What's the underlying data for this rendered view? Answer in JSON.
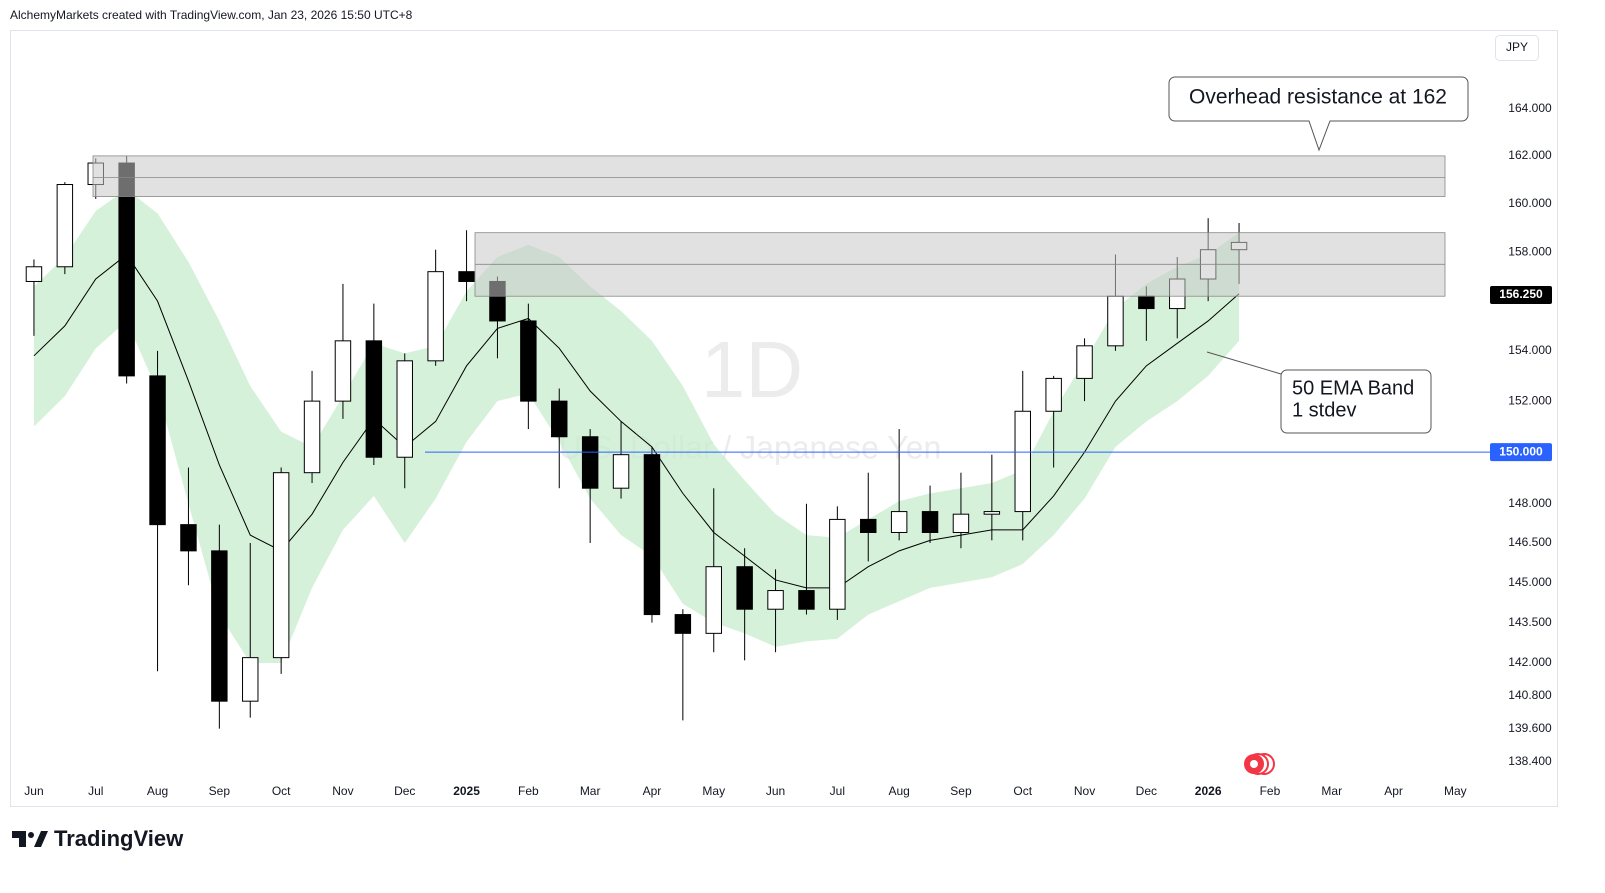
{
  "header": "AlchemyMarkets created with TradingView.com, Jan 23, 2026 15:50 UTC+8",
  "footer": "TradingView",
  "chart_data": {
    "type": "candlestick",
    "watermark": "1D",
    "subtitle": "U.S. Dollar / Japanese Yen",
    "currency": "JPY",
    "annotations": [
      "Overhead resistance at 162",
      "50 EMA Band",
      "1 stdev"
    ],
    "categories": [
      "Jun",
      null,
      "Jul",
      null,
      "Aug",
      null,
      "Sep",
      null,
      "Oct",
      null,
      "Nov",
      null,
      "Dec",
      null,
      "2025",
      null,
      "Feb",
      null,
      "Mar",
      null,
      "Apr",
      null,
      "May",
      null,
      "Jun",
      null,
      "Jul",
      null,
      "Aug",
      null,
      "Sep",
      null,
      "Oct",
      null,
      "Nov",
      null,
      "Dec",
      null,
      "2026",
      null,
      "Feb",
      null,
      "Mar",
      null,
      "Apr",
      null,
      "May"
    ],
    "open": [
      156.8,
      157.4,
      160.8,
      161.7,
      153.0,
      147.2,
      146.2,
      140.6,
      142.2,
      149.2,
      152.0,
      154.4,
      149.8,
      153.6,
      157.2,
      156.8,
      155.2,
      152.0,
      150.6,
      148.6,
      149.9,
      143.8,
      143.1,
      145.6,
      144.0,
      144.7,
      144.0,
      147.4,
      146.9,
      147.7,
      146.9,
      147.6,
      147.7,
      151.6,
      152.9,
      154.2,
      156.2,
      155.7,
      156.9,
      158.1,
      null,
      null,
      null,
      null,
      null,
      null,
      null
    ],
    "high": [
      157.7,
      160.9,
      161.9,
      162.0,
      154.0,
      149.4,
      147.2,
      146.5,
      149.4,
      153.2,
      156.7,
      155.9,
      153.9,
      158.1,
      158.9,
      157.0,
      155.9,
      152.5,
      150.9,
      151.2,
      150.2,
      144.0,
      148.6,
      146.3,
      145.5,
      148.0,
      147.9,
      149.2,
      150.9,
      148.7,
      149.2,
      149.9,
      153.2,
      153.0,
      154.5,
      157.9,
      156.6,
      157.8,
      159.4,
      159.2,
      null,
      null,
      null,
      null,
      null,
      null,
      null
    ],
    "low": [
      154.6,
      157.1,
      160.2,
      152.7,
      141.7,
      144.9,
      139.6,
      140.0,
      141.6,
      148.8,
      151.3,
      149.5,
      148.6,
      153.4,
      156.0,
      153.7,
      150.9,
      148.6,
      146.5,
      148.2,
      143.5,
      139.9,
      142.4,
      142.1,
      142.4,
      143.8,
      143.6,
      145.8,
      146.6,
      146.5,
      146.3,
      146.6,
      146.6,
      149.4,
      152.0,
      154.0,
      154.4,
      154.5,
      156.0,
      156.7,
      null,
      null,
      null,
      null,
      null,
      null,
      null
    ],
    "close": [
      157.4,
      160.8,
      161.7,
      153.0,
      147.2,
      146.2,
      140.6,
      142.2,
      149.2,
      152.0,
      154.4,
      149.8,
      153.6,
      157.2,
      156.8,
      155.2,
      152.0,
      150.6,
      148.6,
      149.9,
      143.8,
      143.1,
      145.6,
      144.0,
      144.7,
      144.0,
      147.4,
      146.9,
      147.7,
      146.9,
      147.6,
      147.7,
      151.6,
      152.9,
      154.2,
      156.2,
      155.7,
      156.9,
      158.1,
      158.4,
      null,
      null,
      null,
      null,
      null,
      null,
      null
    ],
    "color": "#000000",
    "ema": [
      153.8,
      155.0,
      156.9,
      157.9,
      156.0,
      152.8,
      149.5,
      146.8,
      146.2,
      147.6,
      149.6,
      151.3,
      150.2,
      151.2,
      153.4,
      154.9,
      155.3,
      154.1,
      152.4,
      151.2,
      150.2,
      148.4,
      146.9,
      146.0,
      145.1,
      144.8,
      144.8,
      145.6,
      146.2,
      146.6,
      146.8,
      147.0,
      147.0,
      148.3,
      150.0,
      152.0,
      153.4,
      154.3,
      155.2,
      156.3,
      null,
      null,
      null,
      null,
      null,
      null,
      null
    ],
    "band_upper": [
      156.6,
      157.8,
      159.7,
      160.6,
      159.6,
      157.6,
      155.2,
      152.6,
      150.8,
      150.2,
      152.2,
      154.3,
      153.9,
      154.2,
      156.4,
      157.8,
      158.3,
      157.8,
      156.6,
      155.6,
      154.4,
      152.6,
      150.3,
      148.9,
      147.6,
      146.8,
      146.7,
      147.4,
      148.1,
      148.4,
      148.6,
      148.8,
      149.3,
      151.6,
      153.6,
      155.7,
      156.7,
      157.4,
      157.9,
      158.8,
      null,
      null,
      null,
      null,
      null,
      null,
      null
    ],
    "band_lower": [
      151.0,
      152.2,
      154.1,
      155.2,
      152.4,
      148.0,
      143.8,
      142.0,
      142.0,
      144.8,
      147.0,
      148.3,
      146.5,
      148.2,
      150.4,
      152.0,
      152.3,
      150.4,
      148.2,
      146.8,
      146.0,
      144.2,
      143.5,
      143.1,
      142.6,
      142.8,
      142.9,
      143.8,
      144.3,
      144.8,
      145.0,
      145.2,
      145.7,
      146.8,
      148.2,
      150.2,
      151.2,
      152.0,
      153.0,
      154.4,
      null,
      null,
      null,
      null,
      null,
      null,
      null
    ],
    "band_color": "#c8ecce",
    "zones": [
      {
        "low": 160.3,
        "mid": 161.1,
        "high": 162.0
      },
      {
        "low": 156.2,
        "mid": 157.5,
        "high": 158.8
      }
    ],
    "hline": {
      "value": 150,
      "label": "150.000",
      "color": "#2962ff"
    },
    "price_marker": {
      "value": 156.25,
      "label": "156.250"
    },
    "log_scale": true,
    "grid": false,
    "ylim": [
      137.75,
      167.3
    ],
    "yticks": [
      {
        "value": 138.4,
        "label": "138.400"
      },
      {
        "value": 139.6,
        "label": "139.600"
      },
      {
        "value": 140.8,
        "label": "140.800"
      },
      {
        "value": 142,
        "label": "142.000"
      },
      {
        "value": 143.5,
        "label": "143.500"
      },
      {
        "value": 145,
        "label": "145.000"
      },
      {
        "value": 146.5,
        "label": "146.500"
      },
      {
        "value": 148,
        "label": "148.000"
      },
      {
        "value": 152,
        "label": "152.000"
      },
      {
        "value": 154,
        "label": "154.000"
      },
      {
        "value": 158,
        "label": "158.000"
      },
      {
        "value": 160,
        "label": "160.000"
      },
      {
        "value": 162,
        "label": "162.000"
      },
      {
        "value": 164,
        "label": "164.000"
      }
    ]
  }
}
